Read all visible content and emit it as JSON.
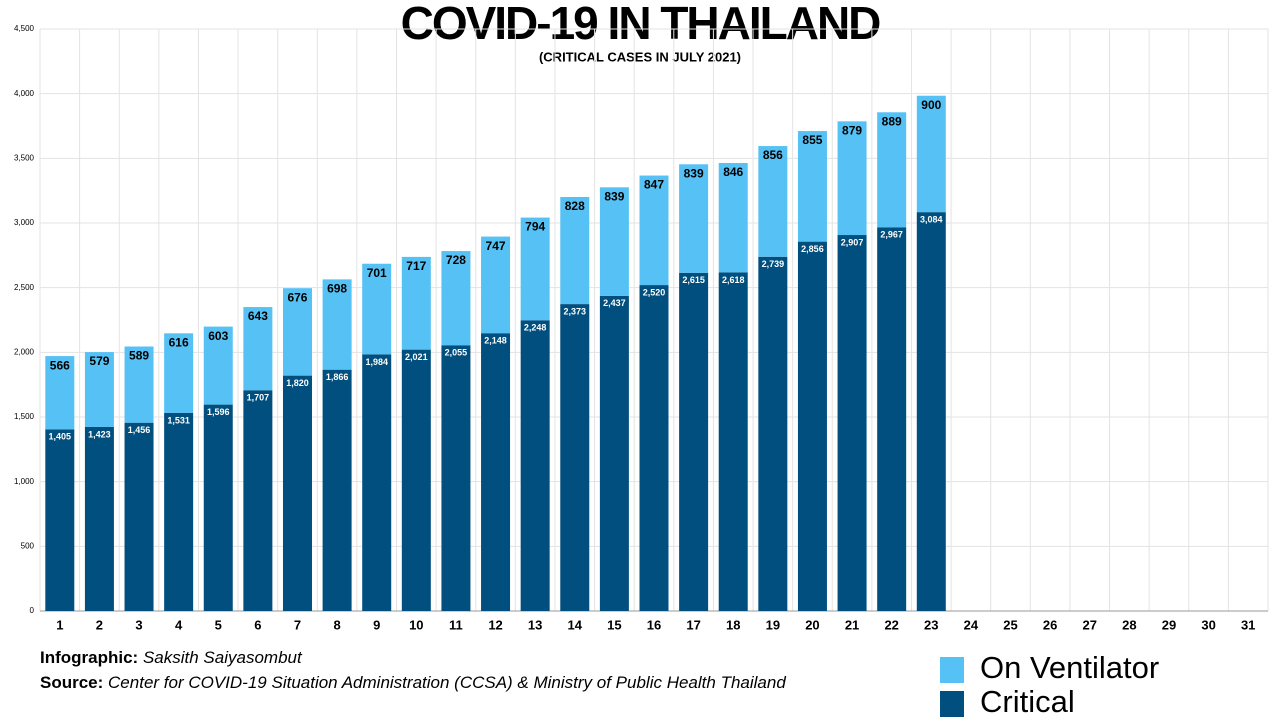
{
  "chart_data": {
    "type": "stacked_bar",
    "title": "COVID-19 IN THAILAND",
    "subtitle": "(CRITICAL CASES IN JULY 2021)",
    "categories": [
      "1",
      "2",
      "3",
      "4",
      "5",
      "6",
      "7",
      "8",
      "9",
      "10",
      "11",
      "12",
      "13",
      "14",
      "15",
      "16",
      "17",
      "18",
      "19",
      "20",
      "21",
      "22",
      "23",
      "24",
      "25",
      "26",
      "27",
      "28",
      "29",
      "30",
      "31"
    ],
    "series": [
      {
        "name": "Critical",
        "color": "#004f7f",
        "values": [
          1405,
          1423,
          1456,
          1531,
          1596,
          1707,
          1820,
          1866,
          1984,
          2021,
          2055,
          2148,
          2248,
          2373,
          2437,
          2520,
          2615,
          2618,
          2739,
          2856,
          2907,
          2967,
          3084,
          null,
          null,
          null,
          null,
          null,
          null,
          null,
          null
        ],
        "value_labels": [
          "1,405",
          "1,423",
          "1,456",
          "1,531",
          "1,596",
          "1,707",
          "1,820",
          "1,866",
          "1,984",
          "2,021",
          "2,055",
          "2,148",
          "2,248",
          "2,373",
          "2,437",
          "2,520",
          "2,615",
          "2,618",
          "2,739",
          "2,856",
          "2,907",
          "2,967",
          "3,084",
          null,
          null,
          null,
          null,
          null,
          null,
          null,
          null
        ]
      },
      {
        "name": "On Ventilator",
        "color": "#56c1f5",
        "values": [
          566,
          579,
          589,
          616,
          603,
          643,
          676,
          698,
          701,
          717,
          728,
          747,
          794,
          828,
          839,
          847,
          839,
          846,
          856,
          855,
          879,
          889,
          900,
          null,
          null,
          null,
          null,
          null,
          null,
          null,
          null
        ]
      }
    ],
    "ylim": [
      0,
      4500
    ],
    "yticks": [
      0,
      500,
      {
        "value": 1000,
        "label": "1,000"
      },
      {
        "value": 1500,
        "label": "1,500"
      },
      {
        "value": 2000,
        "label": "2,000"
      },
      {
        "value": 2500,
        "label": "2,500"
      },
      {
        "value": 3000,
        "label": "3,000"
      },
      {
        "value": 3500,
        "label": "3,500"
      },
      {
        "value": 4000,
        "label": "4,000"
      },
      {
        "value": 4500,
        "label": "4,500"
      }
    ],
    "grid": true
  },
  "credits": {
    "infographic_label": "Infographic:",
    "infographic": "Saksith Saiyasombut",
    "source_label": "Source:",
    "source": "Center for COVID-19 Situation Administration (CCSA) & Ministry of Public Health Thailand"
  }
}
